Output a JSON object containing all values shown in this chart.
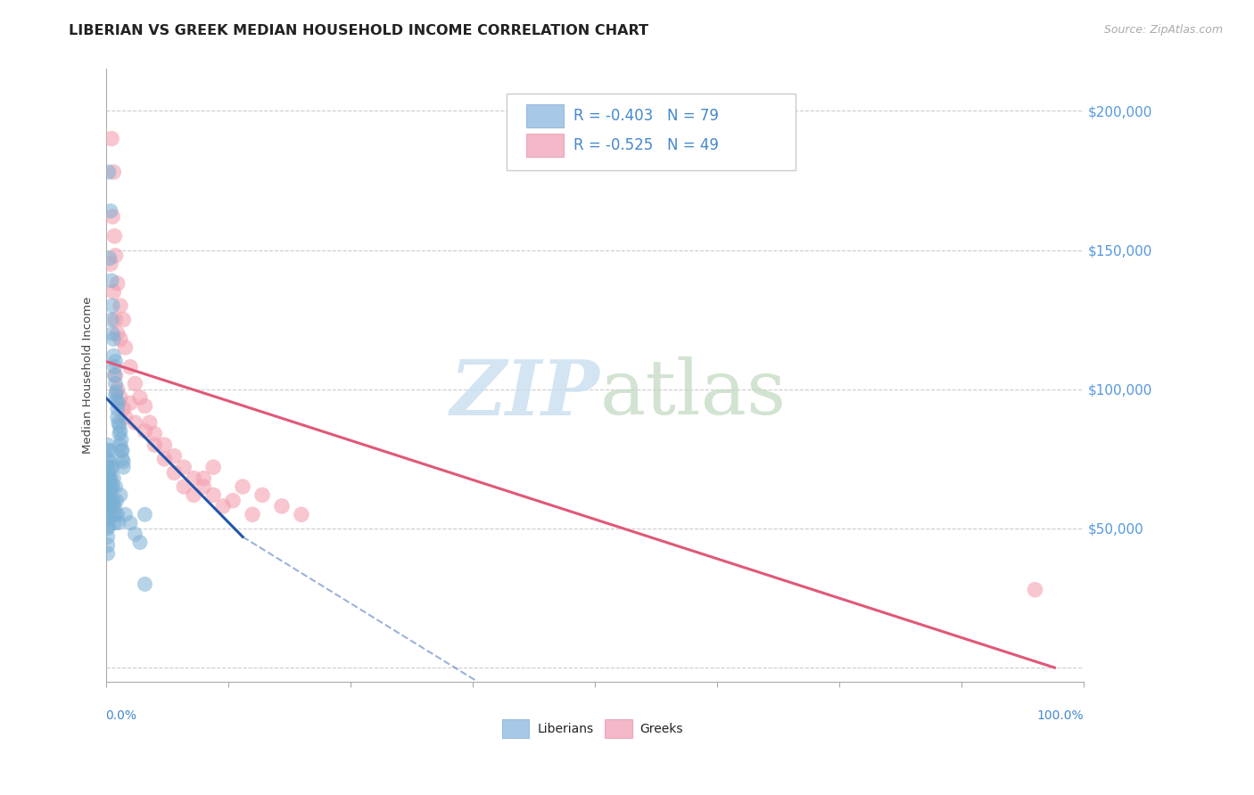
{
  "title": "LIBERIAN VS GREEK MEDIAN HOUSEHOLD INCOME CORRELATION CHART",
  "source": "Source: ZipAtlas.com",
  "ylabel": "Median Household Income",
  "ytick_values": [
    0,
    50000,
    100000,
    150000,
    200000
  ],
  "ytick_right_labels": [
    "",
    "$50,000",
    "$100,000",
    "$150,000",
    "$200,000"
  ],
  "ylim": [
    -5000,
    215000
  ],
  "xlim": [
    0.0,
    1.0
  ],
  "watermark_zip": "ZIP",
  "watermark_atlas": "atlas",
  "liberian_color": "#7bafd4",
  "greek_color": "#f4a0b0",
  "blue_line_color": "#2255aa",
  "pink_line_color": "#e05878",
  "blue_line": {
    "x": [
      0.0,
      0.14
    ],
    "y": [
      97000,
      47000
    ]
  },
  "blue_dashed": {
    "x": [
      0.14,
      0.38
    ],
    "y": [
      47000,
      -5000
    ]
  },
  "pink_line": {
    "x": [
      0.0,
      0.97
    ],
    "y": [
      110000,
      0
    ]
  },
  "liberian_points": [
    [
      0.003,
      178000
    ],
    [
      0.005,
      164000
    ],
    [
      0.004,
      147000
    ],
    [
      0.006,
      139000
    ],
    [
      0.006,
      125000
    ],
    [
      0.007,
      130000
    ],
    [
      0.007,
      120000
    ],
    [
      0.008,
      118000
    ],
    [
      0.008,
      112000
    ],
    [
      0.009,
      108000
    ],
    [
      0.009,
      105000
    ],
    [
      0.01,
      110000
    ],
    [
      0.01,
      102000
    ],
    [
      0.01,
      98000
    ],
    [
      0.011,
      99000
    ],
    [
      0.011,
      96000
    ],
    [
      0.012,
      93000
    ],
    [
      0.012,
      90000
    ],
    [
      0.013,
      95000
    ],
    [
      0.013,
      88000
    ],
    [
      0.014,
      87000
    ],
    [
      0.014,
      84000
    ],
    [
      0.015,
      85000
    ],
    [
      0.015,
      80000
    ],
    [
      0.016,
      82000
    ],
    [
      0.016,
      78000
    ],
    [
      0.017,
      78000
    ],
    [
      0.017,
      75000
    ],
    [
      0.018,
      74000
    ],
    [
      0.018,
      72000
    ],
    [
      0.002,
      80000
    ],
    [
      0.002,
      78000
    ],
    [
      0.002,
      75000
    ],
    [
      0.002,
      72000
    ],
    [
      0.002,
      68000
    ],
    [
      0.002,
      65000
    ],
    [
      0.002,
      62000
    ],
    [
      0.002,
      59000
    ],
    [
      0.002,
      56000
    ],
    [
      0.002,
      53000
    ],
    [
      0.002,
      50000
    ],
    [
      0.002,
      47000
    ],
    [
      0.002,
      44000
    ],
    [
      0.002,
      41000
    ],
    [
      0.003,
      70000
    ],
    [
      0.003,
      66000
    ],
    [
      0.003,
      63000
    ],
    [
      0.003,
      60000
    ],
    [
      0.003,
      57000
    ],
    [
      0.003,
      54000
    ],
    [
      0.003,
      51000
    ],
    [
      0.004,
      74000
    ],
    [
      0.004,
      68000
    ],
    [
      0.004,
      64000
    ],
    [
      0.004,
      60000
    ],
    [
      0.005,
      78000
    ],
    [
      0.005,
      72000
    ],
    [
      0.005,
      68000
    ],
    [
      0.006,
      65000
    ],
    [
      0.006,
      60000
    ],
    [
      0.006,
      55000
    ],
    [
      0.007,
      72000
    ],
    [
      0.007,
      65000
    ],
    [
      0.007,
      58000
    ],
    [
      0.008,
      68000
    ],
    [
      0.008,
      60000
    ],
    [
      0.009,
      58000
    ],
    [
      0.009,
      52000
    ],
    [
      0.01,
      65000
    ],
    [
      0.01,
      55000
    ],
    [
      0.011,
      60000
    ],
    [
      0.012,
      55000
    ],
    [
      0.013,
      52000
    ],
    [
      0.015,
      62000
    ],
    [
      0.02,
      55000
    ],
    [
      0.025,
      52000
    ],
    [
      0.03,
      48000
    ],
    [
      0.035,
      45000
    ],
    [
      0.04,
      55000
    ],
    [
      0.04,
      30000
    ]
  ],
  "greek_points": [
    [
      0.006,
      190000
    ],
    [
      0.008,
      178000
    ],
    [
      0.007,
      162000
    ],
    [
      0.009,
      155000
    ],
    [
      0.005,
      145000
    ],
    [
      0.01,
      148000
    ],
    [
      0.008,
      135000
    ],
    [
      0.012,
      138000
    ],
    [
      0.01,
      125000
    ],
    [
      0.015,
      130000
    ],
    [
      0.012,
      120000
    ],
    [
      0.018,
      125000
    ],
    [
      0.015,
      118000
    ],
    [
      0.02,
      115000
    ],
    [
      0.01,
      105000
    ],
    [
      0.025,
      108000
    ],
    [
      0.012,
      100000
    ],
    [
      0.03,
      102000
    ],
    [
      0.015,
      97000
    ],
    [
      0.035,
      97000
    ],
    [
      0.018,
      93000
    ],
    [
      0.04,
      94000
    ],
    [
      0.02,
      90000
    ],
    [
      0.045,
      88000
    ],
    [
      0.025,
      95000
    ],
    [
      0.05,
      84000
    ],
    [
      0.03,
      88000
    ],
    [
      0.06,
      80000
    ],
    [
      0.04,
      85000
    ],
    [
      0.07,
      76000
    ],
    [
      0.05,
      80000
    ],
    [
      0.08,
      72000
    ],
    [
      0.06,
      75000
    ],
    [
      0.09,
      68000
    ],
    [
      0.07,
      70000
    ],
    [
      0.1,
      65000
    ],
    [
      0.08,
      65000
    ],
    [
      0.11,
      62000
    ],
    [
      0.09,
      62000
    ],
    [
      0.12,
      58000
    ],
    [
      0.1,
      68000
    ],
    [
      0.14,
      65000
    ],
    [
      0.11,
      72000
    ],
    [
      0.16,
      62000
    ],
    [
      0.13,
      60000
    ],
    [
      0.18,
      58000
    ],
    [
      0.15,
      55000
    ],
    [
      0.2,
      55000
    ],
    [
      0.95,
      28000
    ]
  ]
}
